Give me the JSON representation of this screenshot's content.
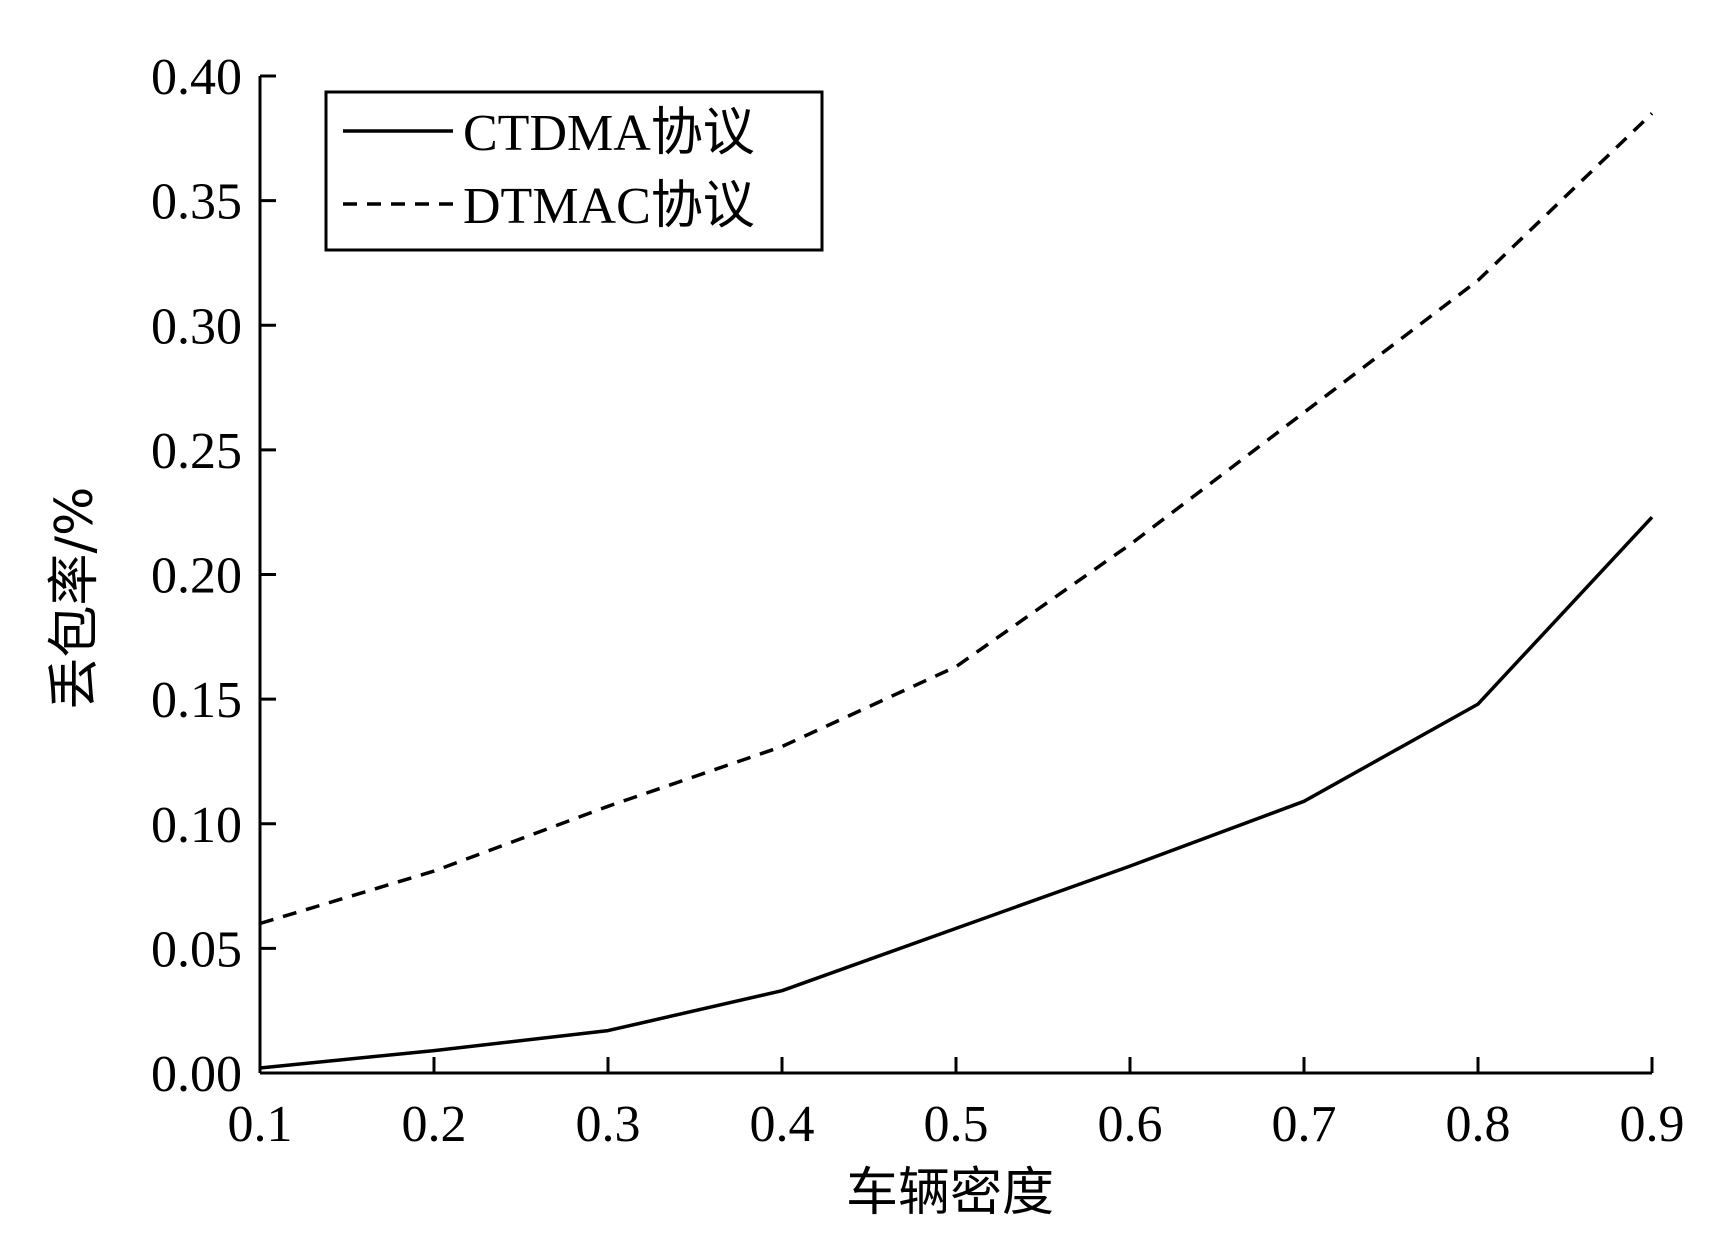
{
  "chart_data": {
    "type": "line",
    "title": "",
    "xlabel": "车辆密度",
    "ylabel": "丢包率/%",
    "x": [
      0.1,
      0.2,
      0.3,
      0.4,
      0.5,
      0.6,
      0.7,
      0.8,
      0.9
    ],
    "xlim": [
      0.1,
      0.9
    ],
    "ylim": [
      0.0,
      0.4
    ],
    "x_ticks": [
      "0.1",
      "0.2",
      "0.3",
      "0.4",
      "0.5",
      "0.6",
      "0.7",
      "0.8",
      "0.9"
    ],
    "y_ticks": [
      "0.00",
      "0.05",
      "0.10",
      "0.15",
      "0.20",
      "0.25",
      "0.30",
      "0.35",
      "0.40"
    ],
    "grid": false,
    "legend_position": "top-left",
    "series": [
      {
        "name": "CTDMA协议",
        "style": "solid",
        "color": "#000000",
        "values": [
          0.002,
          0.009,
          0.017,
          0.033,
          0.058,
          0.083,
          0.109,
          0.148,
          0.223
        ]
      },
      {
        "name": "DTMAC协议",
        "style": "dashed",
        "color": "#000000",
        "values": [
          0.06,
          0.081,
          0.107,
          0.131,
          0.163,
          0.212,
          0.265,
          0.318,
          0.385
        ]
      }
    ]
  }
}
